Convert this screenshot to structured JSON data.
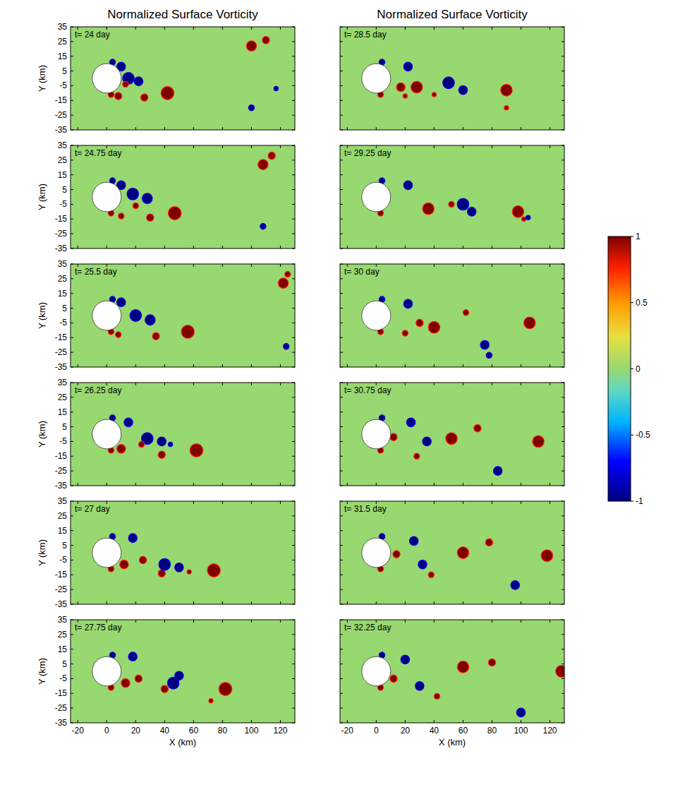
{
  "chart_data": [
    {
      "type": "map",
      "title": "Normalized Surface Vorticity",
      "annotation": "t= 24 day",
      "ylabel": "Y (km)",
      "xlim": [
        -25,
        130
      ],
      "ylim": [
        -35,
        35
      ],
      "xticks": [
        -20,
        0,
        20,
        40,
        60,
        80,
        100,
        120
      ],
      "yticks": [
        -35,
        -25,
        -15,
        -5,
        5,
        15,
        25,
        35
      ],
      "tick_labels": "y",
      "island": {
        "x": 0,
        "y": 0,
        "radius": 10
      },
      "eddies": {
        "x": [
          42,
          26,
          8,
          100,
          110,
          100,
          117,
          15,
          22,
          10,
          13,
          4,
          3
        ],
        "y": [
          -10,
          -13,
          -12,
          22,
          26,
          -20,
          -7,
          0,
          -2,
          8,
          -4,
          11,
          -11
        ],
        "radius": [
          4.5,
          2.5,
          2.5,
          3.5,
          2.5,
          2,
          1.5,
          4,
          3,
          3,
          2,
          2,
          2
        ],
        "values": [
          1,
          1,
          1,
          1,
          1,
          -1,
          -1,
          -1,
          -1,
          -1,
          1,
          -1,
          1
        ]
      }
    },
    {
      "type": "map",
      "annotation": "t= 24.75 day",
      "ylabel": "Y (km)",
      "xlim": [
        -25,
        130
      ],
      "ylim": [
        -35,
        35
      ],
      "xticks": [
        -20,
        0,
        20,
        40,
        60,
        80,
        100,
        120
      ],
      "yticks": [
        -35,
        -25,
        -15,
        -5,
        5,
        15,
        25,
        35
      ],
      "tick_labels": "y",
      "island": {
        "x": 0,
        "y": 0,
        "radius": 10
      },
      "eddies": {
        "x": [
          47,
          30,
          10,
          108,
          114,
          108,
          18,
          28,
          10,
          20,
          4,
          3
        ],
        "y": [
          -11,
          -14,
          -13,
          22,
          28,
          -20,
          2,
          -1,
          8,
          -6,
          11,
          -11
        ],
        "radius": [
          4.5,
          2.5,
          2,
          3.5,
          2.5,
          2,
          4,
          3.5,
          3,
          2,
          2,
          2
        ],
        "values": [
          1,
          1,
          1,
          1,
          1,
          -1,
          -1,
          -1,
          -1,
          1,
          -1,
          1
        ]
      }
    },
    {
      "type": "map",
      "annotation": "t= 25.5 day",
      "ylabel": "Y (km)",
      "xlim": [
        -25,
        130
      ],
      "ylim": [
        -35,
        35
      ],
      "xticks": [
        -20,
        0,
        20,
        40,
        60,
        80,
        100,
        120
      ],
      "yticks": [
        -35,
        -25,
        -15,
        -5,
        5,
        15,
        25,
        35
      ],
      "tick_labels": "y",
      "island": {
        "x": 0,
        "y": 0,
        "radius": 10
      },
      "eddies": {
        "x": [
          56,
          34,
          8,
          122,
          125,
          124,
          20,
          30,
          10,
          4,
          3
        ],
        "y": [
          -11,
          -14,
          -13,
          22,
          28,
          -21,
          0,
          -3,
          9,
          11,
          -11
        ],
        "radius": [
          4.5,
          2.5,
          2,
          3.5,
          2,
          2,
          4,
          3.5,
          3,
          2,
          2
        ],
        "values": [
          1,
          1,
          1,
          1,
          1,
          -1,
          -1,
          -1,
          -1,
          -1,
          1
        ]
      }
    },
    {
      "type": "map",
      "annotation": "t= 26.25 day",
      "ylabel": "Y (km)",
      "xlim": [
        -25,
        130
      ],
      "ylim": [
        -35,
        35
      ],
      "xticks": [
        -20,
        0,
        20,
        40,
        60,
        80,
        100,
        120
      ],
      "yticks": [
        -35,
        -25,
        -15,
        -5,
        5,
        15,
        25,
        35
      ],
      "tick_labels": "y",
      "island": {
        "x": 0,
        "y": 0,
        "radius": 10
      },
      "eddies": {
        "x": [
          62,
          38,
          10,
          28,
          38,
          15,
          24,
          44,
          4,
          3
        ],
        "y": [
          -11,
          -14,
          -10,
          -3,
          -5,
          8,
          -7,
          -7,
          11,
          -11
        ],
        "radius": [
          4.5,
          2.5,
          3,
          4,
          3,
          3,
          2,
          1.5,
          2,
          2
        ],
        "values": [
          1,
          1,
          1,
          -1,
          -1,
          -1,
          1,
          -1,
          -1,
          1
        ]
      }
    },
    {
      "type": "map",
      "annotation": "t= 27 day",
      "ylabel": "Y (km)",
      "xlim": [
        -25,
        130
      ],
      "ylim": [
        -35,
        35
      ],
      "xticks": [
        -20,
        0,
        20,
        40,
        60,
        80,
        100,
        120
      ],
      "yticks": [
        -35,
        -25,
        -15,
        -5,
        5,
        15,
        25,
        35
      ],
      "tick_labels": "y",
      "island": {
        "x": 0,
        "y": 0,
        "radius": 10
      },
      "eddies": {
        "x": [
          74,
          38,
          12,
          25,
          40,
          50,
          18,
          57,
          4,
          3
        ],
        "y": [
          -12,
          -14,
          -8,
          -5,
          -8,
          -10,
          10,
          -13,
          11,
          -11
        ],
        "radius": [
          4.5,
          2.5,
          3,
          2.5,
          4,
          3,
          3,
          1.5,
          2,
          2
        ],
        "values": [
          1,
          1,
          1,
          1,
          -1,
          -1,
          -1,
          1,
          -1,
          1
        ]
      }
    },
    {
      "type": "map",
      "annotation": "t= 27.75 day",
      "ylabel": "Y (km)",
      "xlabel": "X (km)",
      "xlim": [
        -25,
        130
      ],
      "ylim": [
        -35,
        35
      ],
      "xticks": [
        -20,
        0,
        20,
        40,
        60,
        80,
        100,
        120
      ],
      "yticks": [
        -35,
        -25,
        -15,
        -5,
        5,
        15,
        25,
        35
      ],
      "island": {
        "x": 0,
        "y": 0,
        "radius": 10
      },
      "eddies": {
        "x": [
          82,
          40,
          13,
          22,
          46,
          50,
          18,
          72,
          4,
          3
        ],
        "y": [
          -12,
          -12,
          -8,
          -5,
          -8,
          -3,
          10,
          -20,
          11,
          -11
        ],
        "radius": [
          4.5,
          2.5,
          3,
          2.5,
          4,
          3,
          3,
          1.5,
          2,
          2
        ],
        "values": [
          1,
          1,
          1,
          1,
          -1,
          -1,
          -1,
          1,
          -1,
          1
        ]
      }
    },
    {
      "type": "map",
      "title": "Normalized Surface Vorticity",
      "annotation": "t= 28.5 day",
      "xlim": [
        -25,
        130
      ],
      "ylim": [
        -35,
        35
      ],
      "xticks": [
        -20,
        0,
        20,
        40,
        60,
        80,
        100,
        120
      ],
      "yticks": [
        -35,
        -25,
        -15,
        -5,
        5,
        15,
        25,
        35
      ],
      "tick_labels": false,
      "island": {
        "x": 0,
        "y": 0,
        "radius": 10
      },
      "eddies": {
        "x": [
          90,
          28,
          17,
          40,
          90,
          50,
          60,
          22,
          20,
          4,
          3
        ],
        "y": [
          -8,
          -6,
          -6,
          -11,
          -20,
          -3,
          -8,
          8,
          -12,
          11,
          -11
        ],
        "radius": [
          4,
          4,
          3,
          1.5,
          1.5,
          4,
          3,
          3,
          1.5,
          2,
          2
        ],
        "values": [
          1,
          1,
          1,
          1,
          1,
          -1,
          -1,
          -1,
          1,
          -1,
          1
        ]
      }
    },
    {
      "type": "map",
      "annotation": "t= 29.25 day",
      "xlim": [
        -25,
        130
      ],
      "ylim": [
        -35,
        35
      ],
      "xticks": [
        -20,
        0,
        20,
        40,
        60,
        80,
        100,
        120
      ],
      "yticks": [
        -35,
        -25,
        -15,
        -5,
        5,
        15,
        25,
        35
      ],
      "tick_labels": false,
      "island": {
        "x": 0,
        "y": 0,
        "radius": 10
      },
      "eddies": {
        "x": [
          98,
          36,
          52,
          60,
          66,
          22,
          102,
          105,
          4,
          3
        ],
        "y": [
          -10,
          -8,
          -5,
          -5,
          -10,
          8,
          -15,
          -14,
          11,
          -11
        ],
        "radius": [
          4,
          4,
          2,
          4,
          3,
          3,
          1.5,
          1.5,
          2,
          2
        ],
        "values": [
          1,
          1,
          1,
          -1,
          -1,
          -1,
          1,
          -1,
          -1,
          1
        ]
      }
    },
    {
      "type": "map",
      "annotation": "t= 30 day",
      "xlim": [
        -25,
        130
      ],
      "ylim": [
        -35,
        35
      ],
      "xticks": [
        -20,
        0,
        20,
        40,
        60,
        80,
        100,
        120
      ],
      "yticks": [
        -35,
        -25,
        -15,
        -5,
        5,
        15,
        25,
        35
      ],
      "tick_labels": false,
      "island": {
        "x": 0,
        "y": 0,
        "radius": 10
      },
      "eddies": {
        "x": [
          106,
          40,
          62,
          30,
          75,
          78,
          22,
          20,
          4,
          3
        ],
        "y": [
          -5,
          -8,
          2,
          -5,
          -20,
          -27,
          8,
          -12,
          11,
          -11
        ],
        "radius": [
          4,
          4,
          2,
          2.5,
          3,
          2,
          3,
          2,
          2,
          2
        ],
        "values": [
          1,
          1,
          1,
          1,
          -1,
          -1,
          -1,
          1,
          -1,
          1
        ]
      }
    },
    {
      "type": "map",
      "annotation": "t= 30.75 day",
      "xlim": [
        -25,
        130
      ],
      "ylim": [
        -35,
        35
      ],
      "xticks": [
        -20,
        0,
        20,
        40,
        60,
        80,
        100,
        120
      ],
      "yticks": [
        -35,
        -25,
        -15,
        -5,
        5,
        15,
        25,
        35
      ],
      "tick_labels": false,
      "island": {
        "x": 0,
        "y": 0,
        "radius": 10
      },
      "eddies": {
        "x": [
          112,
          52,
          70,
          28,
          84,
          24,
          35,
          12,
          4,
          3
        ],
        "y": [
          -5,
          -3,
          4,
          -15,
          -25,
          8,
          -5,
          -2,
          11,
          -11
        ],
        "radius": [
          4,
          4,
          2.5,
          2,
          3,
          3,
          3,
          2.5,
          2,
          2
        ],
        "values": [
          1,
          1,
          1,
          1,
          -1,
          -1,
          -1,
          1,
          -1,
          1
        ]
      }
    },
    {
      "type": "map",
      "annotation": "t= 31.5 day",
      "xlim": [
        -25,
        130
      ],
      "ylim": [
        -35,
        35
      ],
      "xticks": [
        -20,
        0,
        20,
        40,
        60,
        80,
        100,
        120
      ],
      "yticks": [
        -35,
        -25,
        -15,
        -5,
        5,
        15,
        25,
        35
      ],
      "tick_labels": false,
      "island": {
        "x": 0,
        "y": 0,
        "radius": 10
      },
      "eddies": {
        "x": [
          118,
          60,
          78,
          38,
          96,
          26,
          32,
          14,
          4,
          3
        ],
        "y": [
          -2,
          0,
          7,
          -15,
          -22,
          8,
          -8,
          -1,
          11,
          -11
        ],
        "radius": [
          4,
          4,
          2.5,
          2,
          3,
          3,
          3,
          2.5,
          2,
          2
        ],
        "values": [
          1,
          1,
          1,
          1,
          -1,
          -1,
          -1,
          1,
          -1,
          1
        ]
      }
    },
    {
      "type": "map",
      "annotation": "t= 32.25 day",
      "xlabel": "X (km)",
      "xlim": [
        -25,
        130
      ],
      "ylim": [
        -35,
        35
      ],
      "xticks": [
        -20,
        0,
        20,
        40,
        60,
        80,
        100,
        120
      ],
      "yticks": [
        -35,
        -25,
        -15,
        -5,
        5,
        15,
        25,
        35
      ],
      "tick_labels": "x",
      "island": {
        "x": 0,
        "y": 0,
        "radius": 10
      },
      "eddies": {
        "x": [
          128,
          60,
          80,
          42,
          100,
          30,
          20,
          12,
          4,
          3
        ],
        "y": [
          0,
          3,
          6,
          -17,
          -28,
          -10,
          8,
          -5,
          11,
          -11
        ],
        "radius": [
          4,
          4,
          2.5,
          2,
          3,
          3,
          3,
          2.5,
          2,
          2
        ],
        "values": [
          1,
          1,
          1,
          1,
          -1,
          -1,
          -1,
          1,
          -1,
          1
        ]
      }
    }
  ],
  "colorbar": {
    "range": [
      -1,
      1
    ],
    "ticks": [
      -1,
      -0.5,
      0,
      0.5,
      1
    ]
  }
}
